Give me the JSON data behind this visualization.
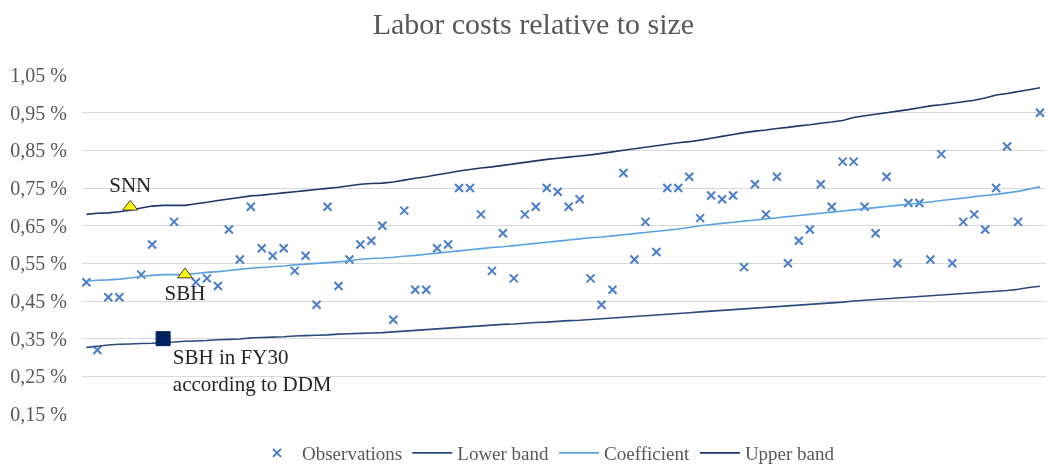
{
  "chart_data": {
    "type": "line",
    "title": "Labor costs relative to size",
    "categories": [
      null,
      null,
      null,
      null,
      null,
      null,
      null,
      null,
      null,
      null,
      null,
      null,
      null,
      null,
      null,
      null,
      null,
      null,
      null,
      null,
      null,
      null,
      null,
      null,
      null,
      null,
      null,
      null,
      null,
      null,
      null,
      null,
      null,
      null,
      null,
      null,
      null,
      null,
      null,
      null,
      null,
      null,
      null,
      null,
      null,
      null,
      null,
      null,
      null,
      null,
      null,
      null,
      null,
      null,
      null,
      null,
      null,
      null,
      null,
      null,
      null,
      null,
      null,
      null,
      null,
      null,
      null,
      null,
      null,
      null,
      null,
      null,
      null,
      null,
      null,
      null,
      null,
      null,
      null,
      null,
      null,
      null,
      null,
      null,
      null,
      null,
      null,
      null
    ],
    "ylim": [
      0.15,
      1.05
    ],
    "yticks": [
      {
        "value": 0.15,
        "label": "0,15 %"
      },
      {
        "value": 0.25,
        "label": "0,25 %"
      },
      {
        "value": 0.35,
        "label": "0,35 %"
      },
      {
        "value": 0.45,
        "label": "0,45 %"
      },
      {
        "value": 0.55,
        "label": "0,55 %"
      },
      {
        "value": 0.65,
        "label": "0,65 %"
      },
      {
        "value": 0.75,
        "label": "0,75 %"
      },
      {
        "value": 0.85,
        "label": "0,85 %"
      },
      {
        "value": 0.95,
        "label": "0,95 %"
      },
      {
        "value": 1.05,
        "label": "1,05 %"
      }
    ],
    "grid": "y",
    "legend": "bottom",
    "tick_labels": "y",
    "series": [
      {
        "name": "Observations",
        "type": "scatter",
        "marker": "cross",
        "color": "#4a7ec8",
        "values": [
          0.5,
          0.32,
          0.46,
          0.46,
          null,
          0.52,
          0.6,
          null,
          0.66,
          null,
          0.5,
          0.51,
          0.49,
          0.64,
          0.56,
          0.7,
          0.59,
          0.57,
          0.59,
          0.53,
          0.57,
          0.44,
          0.7,
          0.49,
          0.56,
          0.6,
          0.61,
          0.65,
          0.4,
          0.69,
          0.48,
          0.48,
          0.59,
          0.6,
          0.75,
          0.75,
          0.68,
          0.53,
          0.63,
          0.51,
          0.68,
          0.7,
          0.75,
          0.74,
          0.7,
          0.72,
          0.51,
          0.44,
          0.48,
          0.79,
          0.56,
          0.66,
          0.58,
          0.75,
          0.75,
          0.78,
          0.67,
          0.73,
          0.72,
          0.73,
          0.54,
          0.76,
          0.68,
          0.78,
          0.55,
          0.61,
          0.64,
          0.76,
          0.7,
          0.82,
          0.82,
          0.7,
          0.63,
          0.78,
          0.55,
          0.71,
          0.71,
          0.56,
          0.84,
          0.55,
          0.66,
          0.68,
          0.64,
          0.75,
          0.86,
          0.66,
          null,
          0.95
        ]
      },
      {
        "name": "Lower band",
        "marker": "none",
        "color": "#2e4a7d",
        "values": [
          0.327,
          0.33,
          0.333,
          0.335,
          0.336,
          0.337,
          0.338,
          0.34,
          0.341,
          0.343,
          0.344,
          0.345,
          0.347,
          0.348,
          0.349,
          0.352,
          0.353,
          0.354,
          0.355,
          0.357,
          0.358,
          0.359,
          0.36,
          0.362,
          0.363,
          0.364,
          0.365,
          0.366,
          0.368,
          0.37,
          0.372,
          0.374,
          0.376,
          0.378,
          0.38,
          0.382,
          0.384,
          0.386,
          0.388,
          0.389,
          0.391,
          0.393,
          0.394,
          0.396,
          0.398,
          0.399,
          0.401,
          0.403,
          0.405,
          0.407,
          0.409,
          0.411,
          0.413,
          0.415,
          0.417,
          0.419,
          0.421,
          0.423,
          0.425,
          0.427,
          0.429,
          0.431,
          0.433,
          0.435,
          0.437,
          0.439,
          0.441,
          0.443,
          0.445,
          0.447,
          0.45,
          0.452,
          0.454,
          0.456,
          0.458,
          0.46,
          0.462,
          0.464,
          0.466,
          0.468,
          0.47,
          0.472,
          0.474,
          0.476,
          0.478,
          0.481,
          0.486,
          0.489
        ]
      },
      {
        "name": "Coefficient",
        "marker": "none",
        "color": "#5ba3e0",
        "values": [
          0.503,
          0.505,
          0.506,
          0.508,
          0.511,
          0.515,
          0.518,
          0.52,
          0.52,
          0.52,
          0.523,
          0.526,
          0.528,
          0.531,
          0.534,
          0.537,
          0.539,
          0.541,
          0.543,
          0.546,
          0.548,
          0.55,
          0.552,
          0.554,
          0.557,
          0.561,
          0.563,
          0.564,
          0.566,
          0.569,
          0.571,
          0.574,
          0.577,
          0.58,
          0.583,
          0.586,
          0.589,
          0.592,
          0.594,
          0.597,
          0.6,
          0.603,
          0.606,
          0.609,
          0.612,
          0.615,
          0.618,
          0.62,
          0.623,
          0.626,
          0.629,
          0.632,
          0.635,
          0.638,
          0.641,
          0.645,
          0.65,
          0.653,
          0.656,
          0.659,
          0.662,
          0.665,
          0.668,
          0.671,
          0.674,
          0.677,
          0.68,
          0.683,
          0.686,
          0.689,
          0.692,
          0.695,
          0.698,
          0.701,
          0.704,
          0.707,
          0.71,
          0.713,
          0.717,
          0.72,
          0.723,
          0.727,
          0.73,
          0.733,
          0.737,
          0.741,
          0.747,
          0.753
        ]
      },
      {
        "name": "Upper band",
        "marker": "none",
        "color": "#1f3868",
        "values": [
          0.68,
          0.683,
          0.684,
          0.687,
          0.691,
          0.697,
          0.702,
          0.704,
          0.704,
          0.704,
          0.708,
          0.712,
          0.717,
          0.721,
          0.725,
          0.729,
          0.731,
          0.734,
          0.737,
          0.74,
          0.743,
          0.746,
          0.749,
          0.752,
          0.756,
          0.76,
          0.762,
          0.763,
          0.766,
          0.771,
          0.776,
          0.78,
          0.785,
          0.79,
          0.795,
          0.799,
          0.803,
          0.806,
          0.81,
          0.814,
          0.818,
          0.822,
          0.826,
          0.829,
          0.832,
          0.835,
          0.838,
          0.842,
          0.846,
          0.85,
          0.854,
          0.858,
          0.862,
          0.866,
          0.87,
          0.873,
          0.877,
          0.882,
          0.887,
          0.892,
          0.897,
          0.901,
          0.904,
          0.908,
          0.911,
          0.915,
          0.918,
          0.922,
          0.925,
          0.929,
          0.937,
          0.942,
          0.946,
          0.95,
          0.954,
          0.958,
          0.963,
          0.968,
          0.971,
          0.975,
          0.979,
          0.983,
          0.989,
          0.997,
          1.001,
          1.006,
          1.011,
          1.016
        ]
      },
      {
        "name": "SNN",
        "type": "scatter",
        "marker": "triangle",
        "color": "#ffff00",
        "values": [
          null,
          null,
          null,
          null,
          0.7,
          null,
          null,
          null,
          null,
          null,
          null,
          null,
          null,
          null,
          null,
          null,
          null,
          null,
          null,
          null,
          null,
          null,
          null,
          null,
          null,
          null,
          null,
          null,
          null,
          null,
          null,
          null,
          null,
          null,
          null,
          null,
          null,
          null,
          null,
          null,
          null,
          null,
          null,
          null,
          null,
          null,
          null,
          null,
          null,
          null,
          null,
          null,
          null,
          null,
          null,
          null,
          null,
          null,
          null,
          null,
          null,
          null,
          null,
          null,
          null,
          null,
          null,
          null,
          null,
          null,
          null,
          null,
          null,
          null,
          null,
          null,
          null,
          null,
          null,
          null,
          null,
          null,
          null,
          null,
          null,
          null,
          null,
          null
        ]
      },
      {
        "name": "SBH",
        "type": "scatter",
        "marker": "triangle",
        "color": "#ffff00",
        "values": [
          null,
          null,
          null,
          null,
          null,
          null,
          null,
          null,
          null,
          0.52,
          null,
          null,
          null,
          null,
          null,
          null,
          null,
          null,
          null,
          null,
          null,
          null,
          null,
          null,
          null,
          null,
          null,
          null,
          null,
          null,
          null,
          null,
          null,
          null,
          null,
          null,
          null,
          null,
          null,
          null,
          null,
          null,
          null,
          null,
          null,
          null,
          null,
          null,
          null,
          null,
          null,
          null,
          null,
          null,
          null,
          null,
          null,
          null,
          null,
          null,
          null,
          null,
          null,
          null,
          null,
          null,
          null,
          null,
          null,
          null,
          null,
          null,
          null,
          null,
          null,
          null,
          null,
          null,
          null,
          null,
          null,
          null,
          null,
          null,
          null,
          null,
          null,
          null
        ]
      },
      {
        "name": "SBH in FY30\naccording to DDM",
        "type": "scatter",
        "marker": "square",
        "color": "#002060",
        "values": [
          null,
          null,
          null,
          null,
          null,
          null,
          null,
          0.35,
          null,
          null,
          null,
          null,
          null,
          null,
          null,
          null,
          null,
          null,
          null,
          null,
          null,
          null,
          null,
          null,
          null,
          null,
          null,
          null,
          null,
          null,
          null,
          null,
          null,
          null,
          null,
          null,
          null,
          null,
          null,
          null,
          null,
          null,
          null,
          null,
          null,
          null,
          null,
          null,
          null,
          null,
          null,
          null,
          null,
          null,
          null,
          null,
          null,
          null,
          null,
          null,
          null,
          null,
          null,
          null,
          null,
          null,
          null,
          null,
          null,
          null,
          null,
          null,
          null,
          null,
          null,
          null,
          null,
          null,
          null,
          null,
          null,
          null,
          null,
          null,
          null,
          null,
          null,
          null
        ]
      }
    ]
  }
}
